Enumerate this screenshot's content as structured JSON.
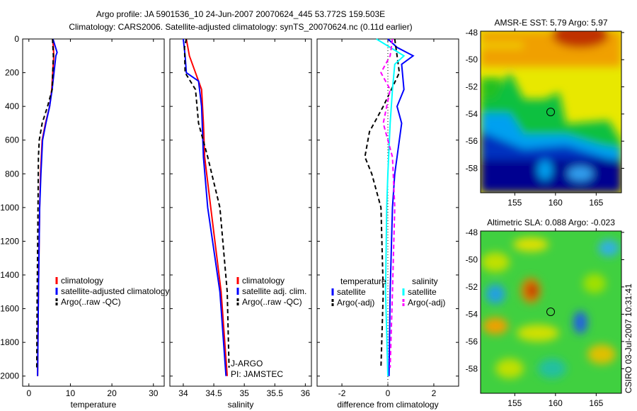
{
  "title": {
    "line1": "Argo profile: JA 5901536_10 24-Jun-2007 20070624_445 53.772S 159.503E",
    "line2": "Climatology: CARS2006. Satellite-adjusted climatology: synTS_20070624.nc (0.11d earlier)"
  },
  "side_text": "CSIRO 03-Jul-2007 10:31:41",
  "colors": {
    "climatology": "#ff0000",
    "satellite": "#0000ff",
    "argo": "#000000",
    "sal_satellite": "#00ffff",
    "sal_argo": "#ff00ff"
  },
  "chart_data": [
    {
      "type": "line",
      "xlabel": "temperature",
      "xlim": [
        -1.5,
        32.6
      ],
      "ylim": [
        0,
        2060
      ],
      "y_reversed": true,
      "xticks": [
        0,
        10,
        20,
        30
      ],
      "yticks": [
        0,
        200,
        400,
        600,
        800,
        1000,
        1200,
        1400,
        1600,
        1800,
        2000
      ],
      "legend": [
        "climatology",
        "satellite-adjusted climatology",
        "Argo(..raw -QC)"
      ],
      "series": [
        {
          "name": "climatology",
          "color": "#ff0000",
          "dash": false,
          "depth": [
            0,
            100,
            300,
            400,
            500,
            600,
            800,
            1000,
            1500,
            2000
          ],
          "values": [
            5.8,
            6.0,
            5.5,
            5.0,
            4.0,
            3.2,
            2.8,
            2.6,
            2.3,
            2.1
          ]
        },
        {
          "name": "satellite-adjusted climatology",
          "color": "#0000ff",
          "dash": false,
          "depth": [
            0,
            80,
            100,
            300,
            400,
            500,
            600,
            800,
            1000,
            1500,
            2000
          ],
          "values": [
            5.8,
            6.8,
            6.5,
            5.6,
            5.0,
            4.1,
            3.3,
            2.9,
            2.6,
            2.3,
            2.1
          ]
        },
        {
          "name": "Argo(..raw -QC)",
          "color": "#000000",
          "dash": true,
          "depth": [
            0,
            100,
            300,
            400,
            500,
            600,
            700,
            1000,
            1500,
            1950
          ],
          "values": [
            5.7,
            5.9,
            5.6,
            4.5,
            3.2,
            2.5,
            2.3,
            2.2,
            2.0,
            1.9
          ]
        }
      ]
    },
    {
      "type": "line",
      "xlabel": "salinity",
      "xlim": [
        33.78,
        36.1
      ],
      "ylim": [
        0,
        2060
      ],
      "y_reversed": true,
      "xticks": [
        34,
        34.5,
        35,
        35.5,
        36
      ],
      "legend": [
        "climatology",
        "satellite adj. clim.",
        "Argo(..raw -QC)"
      ],
      "annotations": [
        "J-ARGO",
        "PI: JAMSTEC"
      ],
      "series": [
        {
          "name": "climatology",
          "color": "#ff0000",
          "dash": false,
          "depth": [
            0,
            100,
            200,
            300,
            500,
            700,
            1000,
            1500,
            2000
          ],
          "values": [
            34.05,
            34.1,
            34.2,
            34.3,
            34.33,
            34.35,
            34.45,
            34.62,
            34.72
          ]
        },
        {
          "name": "satellite adj. clim.",
          "color": "#0000ff",
          "dash": false,
          "depth": [
            0,
            100,
            200,
            250,
            400,
            700,
            1000,
            1500,
            2000
          ],
          "values": [
            34.0,
            34.03,
            34.05,
            34.25,
            34.3,
            34.33,
            34.4,
            34.6,
            34.7
          ]
        },
        {
          "name": "Argo(..raw -QC)",
          "color": "#000000",
          "dash": true,
          "depth": [
            0,
            50,
            200,
            300,
            500,
            700,
            1000,
            1500,
            1950
          ],
          "values": [
            34.05,
            34.02,
            34.03,
            34.2,
            34.25,
            34.4,
            34.6,
            34.72,
            34.75
          ]
        }
      ]
    },
    {
      "type": "line",
      "xlabel": "difference from climatology",
      "xlim": [
        -3.08,
        3.08
      ],
      "ylim": [
        0,
        2060
      ],
      "y_reversed": true,
      "xticks": [
        -2,
        0,
        2
      ],
      "legend_headers": [
        "temperature",
        "salinity"
      ],
      "legend": [
        "satellite",
        "Argo(-adj)",
        "satellite",
        "Argo(-adj)"
      ],
      "series": [
        {
          "name": "temperature satellite",
          "color": "#0000ff",
          "dash": false,
          "depth": [
            0,
            50,
            100,
            150,
            300,
            400,
            500,
            600,
            800,
            1000,
            1500,
            2000
          ],
          "values": [
            0,
            0.4,
            1.1,
            0.6,
            0.7,
            0.4,
            0.6,
            0.5,
            0.3,
            0.2,
            0.1,
            0.05
          ]
        },
        {
          "name": "temperature Argo(-adj)",
          "color": "#000000",
          "dash": true,
          "depth": [
            0,
            100,
            200,
            400,
            550,
            700,
            800,
            1000,
            1500,
            1950
          ],
          "values": [
            0.3,
            0.4,
            0.5,
            -0.2,
            -0.8,
            -1.0,
            -0.7,
            -0.3,
            -0.2,
            -0.3
          ]
        },
        {
          "name": "salinity satellite",
          "color": "#00ffff",
          "dash": false,
          "depth": [
            0,
            50,
            100,
            150,
            300,
            500,
            800,
            1000,
            1500,
            2000
          ],
          "values": [
            -0.5,
            0.1,
            0.7,
            0.3,
            0.2,
            0.1,
            0,
            -0.05,
            -0.1,
            0
          ]
        },
        {
          "name": "salinity Argo(-adj)",
          "color": "#ff00ff",
          "dash": true,
          "depth": [
            0,
            100,
            200,
            300,
            500,
            700,
            1000,
            1500,
            1950
          ],
          "values": [
            0.2,
            0.1,
            -0.3,
            0.1,
            -0.2,
            0.2,
            0.3,
            0.2,
            0.1
          ]
        }
      ]
    },
    {
      "type": "heatmap",
      "title": "AMSR-E SST: 5.79 Argo: 5.97",
      "xlim": [
        150.8,
        168.1
      ],
      "ylim": [
        -59.8,
        -47.9
      ],
      "xticks": [
        155,
        160,
        165
      ],
      "yticks": [
        -48,
        -50,
        -52,
        -54,
        -56,
        -58
      ],
      "profile_location": [
        159.5,
        -53.77
      ]
    },
    {
      "type": "heatmap",
      "title": "Altimetric SLA: 0.088 Argo: -0.023",
      "xlim": [
        150.8,
        168.1
      ],
      "ylim": [
        -59.8,
        -47.9
      ],
      "xticks": [
        155,
        160,
        165
      ],
      "yticks": [
        -48,
        -50,
        -52,
        -54,
        -56,
        -58
      ],
      "profile_location": [
        159.5,
        -53.77
      ]
    }
  ]
}
